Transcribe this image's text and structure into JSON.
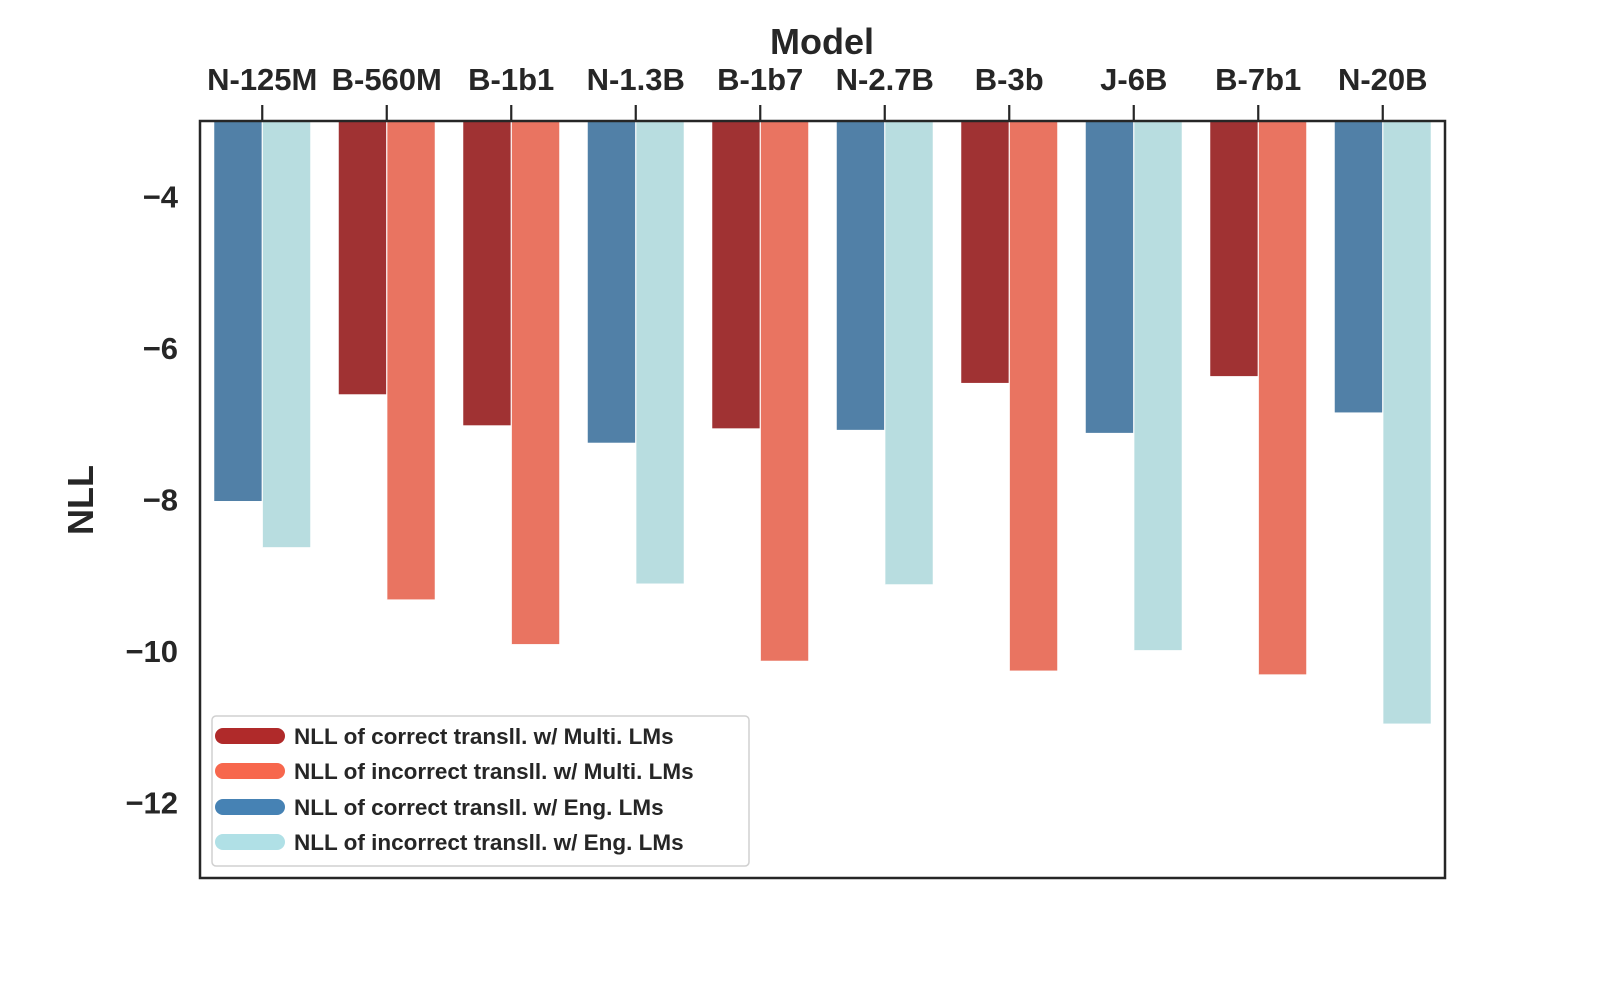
{
  "chart_data": {
    "type": "bar",
    "orientation": "vertical",
    "x_axis_position": "top",
    "xlabel": "Model",
    "ylabel": "NLL",
    "ylim": [
      -13,
      -3
    ],
    "yticks": [
      -4,
      -6,
      -8,
      -10,
      -12
    ],
    "ytick_labels": [
      "−4",
      "−6",
      "−8",
      "−10",
      "−12"
    ],
    "grid": false,
    "legend_position": "bottom-left",
    "categories": [
      "N-125M",
      "B-560M",
      "B-1b1",
      "N-1.3B",
      "B-1b7",
      "N-2.7B",
      "B-3b",
      "J-6B",
      "B-7b1",
      "N-20B"
    ],
    "model_family": [
      "Eng",
      "Multi",
      "Multi",
      "Eng",
      "Multi",
      "Eng",
      "Multi",
      "Eng",
      "Multi",
      "Eng"
    ],
    "series": [
      {
        "name": "NLL of correct transl. (left bar)",
        "values": [
          -8.02,
          -6.61,
          -7.02,
          -7.25,
          -7.06,
          -7.08,
          -6.46,
          -7.12,
          -6.37,
          -6.85
        ]
      },
      {
        "name": "NLL of incorrect transl. (right bar)",
        "values": [
          -8.63,
          -9.32,
          -9.91,
          -9.11,
          -10.13,
          -9.12,
          -10.26,
          -9.99,
          -10.31,
          -10.96
        ]
      }
    ],
    "colors": {
      "multi_correct": "#a03233",
      "multi_incorrect": "#e97461",
      "eng_correct": "#5180a7",
      "eng_incorrect": "#b8dde0"
    },
    "legend": [
      {
        "label": "NLL of correct transll. w/ Multi. LMs",
        "color": "#b02a2a"
      },
      {
        "label": "NLL of incorrect transll. w/ Multi. LMs",
        "color": "#f7674d"
      },
      {
        "label": "NLL of correct transll. w/ Eng. LMs",
        "color": "#4682b4"
      },
      {
        "label": "NLL of incorrect transll. w/ Eng. LMs",
        "color": "#b0e0e6"
      }
    ]
  }
}
